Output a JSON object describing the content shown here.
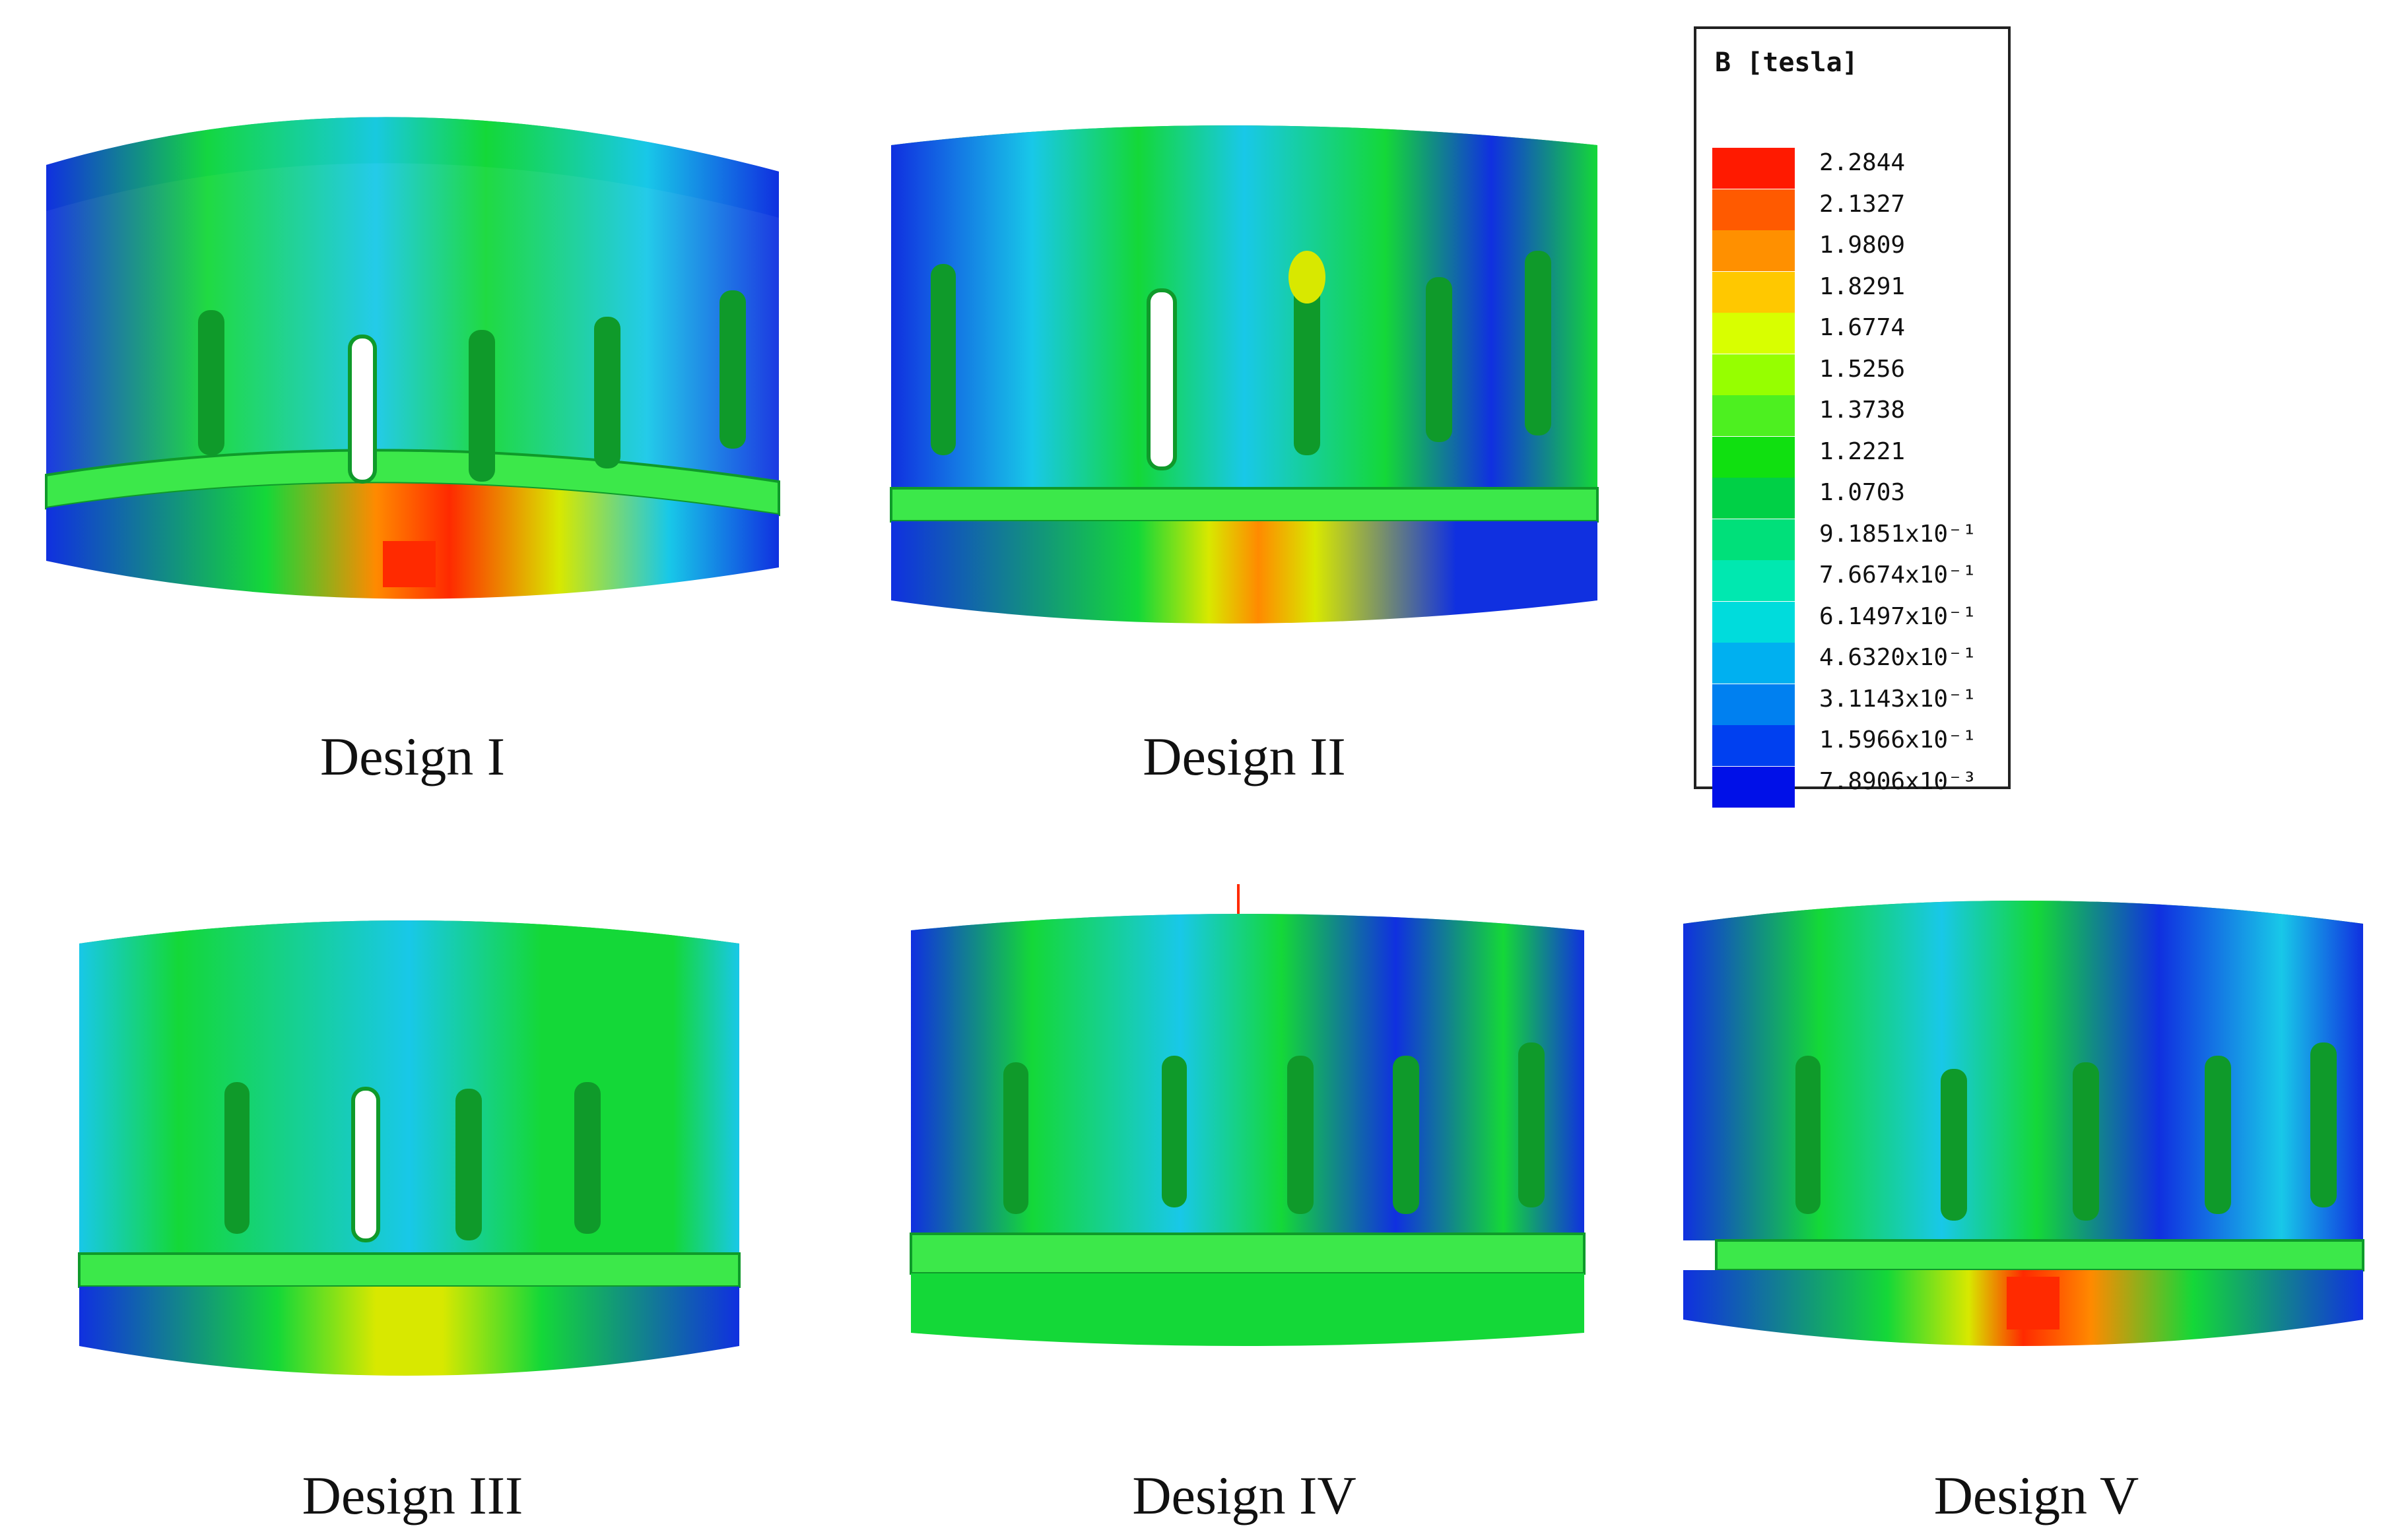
{
  "legend": {
    "title": "B [tesla]",
    "entries": [
      {
        "label": "2.2844",
        "color": "#ff1a00"
      },
      {
        "label": "2.1327",
        "color": "#ff5a00"
      },
      {
        "label": "1.9809",
        "color": "#ff9000"
      },
      {
        "label": "1.8291",
        "color": "#ffc800"
      },
      {
        "label": "1.6774",
        "color": "#d8ff00"
      },
      {
        "label": "1.5256",
        "color": "#96ff00"
      },
      {
        "label": "1.3738",
        "color": "#4df020"
      },
      {
        "label": "1.2221",
        "color": "#10e010"
      },
      {
        "label": "1.0703",
        "color": "#00d046"
      },
      {
        "label": "9.1851x10⁻¹",
        "color": "#00e07a"
      },
      {
        "label": "7.6674x10⁻¹",
        "color": "#00e8b0"
      },
      {
        "label": "6.1497x10⁻¹",
        "color": "#00dcdc"
      },
      {
        "label": "4.6320x10⁻¹",
        "color": "#00b0f0"
      },
      {
        "label": "3.1143x10⁻¹",
        "color": "#0080f0"
      },
      {
        "label": "1.5966x10⁻¹",
        "color": "#0040f0"
      },
      {
        "label": "7.8906x10⁻³",
        "color": "#0010e8"
      }
    ]
  },
  "designs": [
    {
      "label": "Design I"
    },
    {
      "label": "Design II"
    },
    {
      "label": "Design III"
    },
    {
      "label": "Design IV"
    },
    {
      "label": "Design V"
    }
  ],
  "colors": {
    "blue": "#1030e0",
    "cyan": "#18c8e8",
    "green": "#14d838",
    "lightgreen": "#3ce84a",
    "yellow": "#d8e800",
    "orange": "#ff8a00",
    "red": "#ff2a00",
    "slot": "#0f9a2a"
  }
}
